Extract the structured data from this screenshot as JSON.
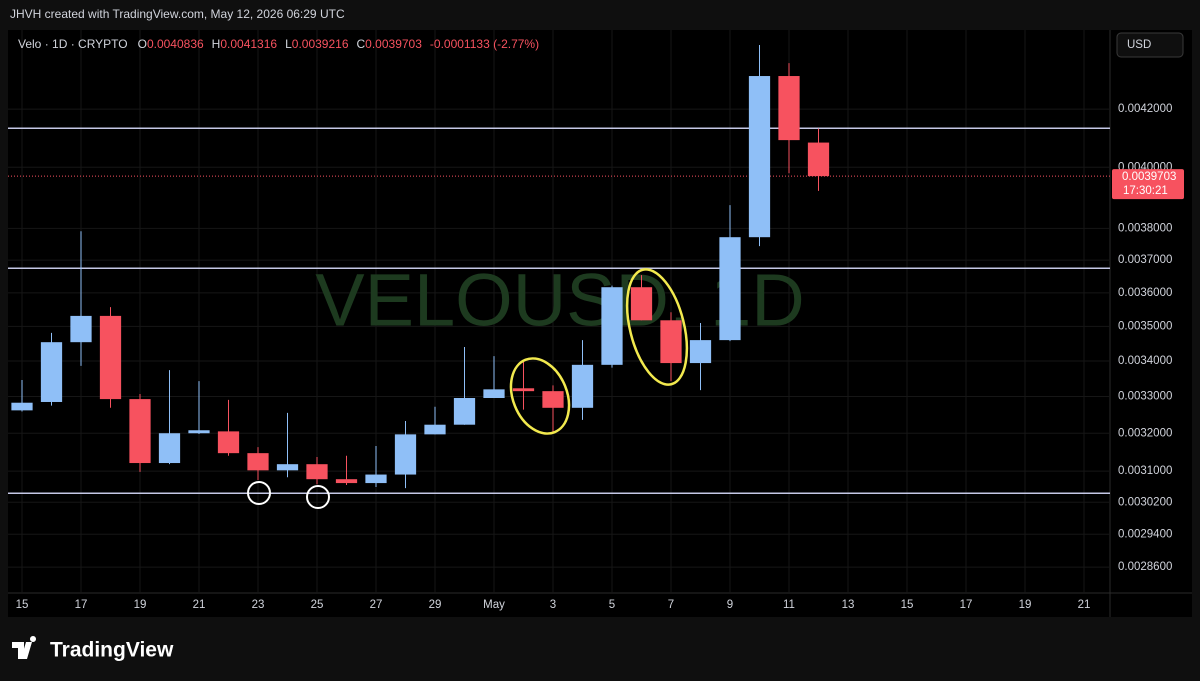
{
  "header": "JHVH created with TradingView.com, May 12, 2026 06:29 UTC",
  "footer": "TradingView",
  "chart_data": {
    "type": "candlestick",
    "symbol": "Velo · 1D · CRYPTO",
    "ohlc_labels": [
      "O",
      "H",
      "L",
      "C"
    ],
    "change": "-0.0001133 (-2.77%)",
    "watermark": "VELOUSD, 1D",
    "currency": "USD",
    "countdown": "17:30:21",
    "log_scale": true,
    "grid": true,
    "up_color": "#8fbff7",
    "down_color": "#f7525f",
    "line_color": "#c5c8e6",
    "categories": [
      "15",
      null,
      "17",
      null,
      "19",
      null,
      "21",
      null,
      "23",
      null,
      "25",
      null,
      "27",
      null,
      "29",
      null,
      "May",
      null,
      "3",
      null,
      "5",
      null,
      "7",
      null,
      "9",
      null,
      "11",
      null,
      "13",
      null,
      "15",
      null,
      "17",
      null,
      "19",
      null,
      "21"
    ],
    "open": [
      0.003262,
      0.003285,
      0.003454,
      0.003531,
      0.003293,
      0.003121,
      0.0032,
      0.003205,
      0.003147,
      0.003102,
      0.003118,
      0.003079,
      0.003069,
      0.003091,
      0.003197,
      0.003223,
      0.003296,
      0.003323,
      0.003315,
      0.003269,
      0.003389,
      0.003617,
      0.003518,
      0.003394,
      0.00346,
      0.003772,
      0.004318,
      0.0040836,
      null,
      null,
      null,
      null,
      null,
      null,
      null,
      null,
      null
    ],
    "high": [
      0.003346,
      0.003481,
      0.003791,
      0.003557,
      0.003307,
      0.003374,
      0.003343,
      0.003291,
      0.003163,
      0.003255,
      0.003137,
      0.00314,
      0.003166,
      0.003233,
      0.003272,
      0.00344,
      0.003414,
      0.003397,
      0.003331,
      0.00346,
      0.003622,
      0.003654,
      0.003542,
      0.00351,
      0.003875,
      0.004432,
      0.004365,
      0.0041316,
      null,
      null,
      null,
      null,
      null,
      null,
      null,
      null,
      null
    ],
    "low": [
      0.003259,
      0.003275,
      0.003386,
      0.003269,
      0.003098,
      0.003118,
      0.003198,
      0.00314,
      0.003077,
      0.003084,
      0.003066,
      0.003064,
      0.003059,
      0.003056,
      0.003197,
      0.003223,
      0.003296,
      0.003264,
      0.0032,
      0.003236,
      0.003381,
      0.003518,
      0.003343,
      0.003318,
      0.003457,
      0.003744,
      0.00398,
      0.0039216,
      null,
      null,
      null,
      null,
      null,
      null,
      null,
      null,
      null
    ],
    "close": [
      0.003283,
      0.003454,
      0.003531,
      0.003293,
      0.003121,
      0.0032,
      0.003208,
      0.003147,
      0.003102,
      0.003118,
      0.003079,
      0.003069,
      0.003091,
      0.003197,
      0.003223,
      0.003296,
      0.00332,
      0.003315,
      0.003269,
      0.003389,
      0.003617,
      0.003518,
      0.003394,
      0.00346,
      0.003772,
      0.004318,
      0.004092,
      0.0039703,
      null,
      null,
      null,
      null,
      null,
      null,
      null,
      null,
      null
    ],
    "horizontal_lines": [
      0.004133,
      0.003675,
      0.003043
    ],
    "ylim": [
      0.002801,
      0.004488
    ],
    "yticks": [
      {
        "value": 0.0042,
        "label": "0.0042000"
      },
      {
        "value": 0.004,
        "label": "0.0040000"
      },
      {
        "value": 0.0038,
        "label": "0.0038000"
      },
      {
        "value": 0.0037,
        "label": "0.0037000"
      },
      {
        "value": 0.0036,
        "label": "0.0036000"
      },
      {
        "value": 0.0035,
        "label": "0.0035000"
      },
      {
        "value": 0.0034,
        "label": "0.0034000"
      },
      {
        "value": 0.0033,
        "label": "0.0033000"
      },
      {
        "value": 0.0032,
        "label": "0.0032000"
      },
      {
        "value": 0.0031,
        "label": "0.0031000"
      },
      {
        "value": 0.00302,
        "label": "0.0030200"
      },
      {
        "value": 0.00294,
        "label": "0.0029400"
      },
      {
        "value": 0.00286,
        "label": "0.0028600"
      }
    ]
  }
}
